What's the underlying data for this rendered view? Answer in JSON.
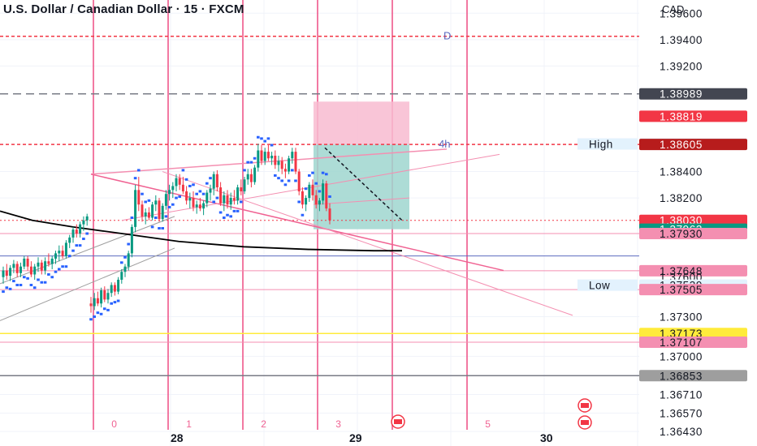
{
  "header": {
    "title": "U.S. Dollar / Canadian Dollar · 15 · FXCM",
    "currency": "CAD"
  },
  "chart_data": {
    "type": "candlestick",
    "symbol": "USDCAD",
    "timeframe": "15",
    "ylim": [
      1.3632,
      1.397
    ],
    "price_ticks": [
      "1.39600",
      "1.39400",
      "1.39200",
      "1.38400",
      "1.38200",
      "1.37300",
      "1.37000",
      "1.36710",
      "1.36570",
      "1.36430"
    ],
    "tags": [
      {
        "text": "1.38989",
        "value": 1.38989,
        "bg": "#434651",
        "fg": "#ffffff"
      },
      {
        "text": "1.38819",
        "value": 1.38819,
        "bg": "#f23645",
        "fg": "#ffffff"
      },
      {
        "text": "1.38609",
        "value": 1.38609,
        "bg": "#e3f2fd",
        "fg": "#131722",
        "label": "High"
      },
      {
        "text": "1.38605",
        "value": 1.38605,
        "bg": "#b71c1c",
        "fg": "#ffffff"
      },
      {
        "text": "1.38030",
        "value": 1.3803,
        "bg": "#f23645",
        "fg": "#ffffff",
        "sub": "02:02"
      },
      {
        "text": "1.37963",
        "value": 1.37963,
        "bg": "#089981",
        "fg": "#ffffff"
      },
      {
        "text": "1.37930",
        "value": 1.3793,
        "bg": "#f48fb1",
        "fg": "#131722"
      },
      {
        "text": "1.37648",
        "value": 1.37648,
        "bg": "#f48fb1",
        "fg": "#131722"
      },
      {
        "text": "1.37600",
        "value": 1.376,
        "bg": "none",
        "fg": "#131722"
      },
      {
        "text": "1.37539",
        "value": 1.37539,
        "bg": "#e3f2fd",
        "fg": "#131722",
        "label": "Low"
      },
      {
        "text": "1.37505",
        "value": 1.37505,
        "bg": "#f48fb1",
        "fg": "#131722"
      },
      {
        "text": "1.37173",
        "value": 1.37173,
        "bg": "#ffeb3b",
        "fg": "#131722"
      },
      {
        "text": "1.37107",
        "value": 1.37107,
        "bg": "#f48fb1",
        "fg": "#131722"
      },
      {
        "text": "1.36853",
        "value": 1.36853,
        "bg": "#9e9e9e",
        "fg": "#131722"
      }
    ],
    "dates": [
      {
        "label": "28",
        "session": 1.0
      },
      {
        "label": "29",
        "session": 3.5
      },
      {
        "label": "30",
        "session": 5.5
      }
    ],
    "session_numbers": [
      {
        "label": "0",
        "session": 0.1
      },
      {
        "label": "1",
        "session": 1.1
      },
      {
        "label": "2",
        "session": 2.1
      },
      {
        "label": "3",
        "session": 3.1
      },
      {
        "label": "5",
        "session": 5.1
      }
    ],
    "level_labels": [
      {
        "label": "D",
        "value": 1.39425
      },
      {
        "label": "4h",
        "value": 1.38605
      }
    ],
    "reference_levels": [
      1.38989,
      1.38605,
      1.3803,
      1.37963,
      1.3793,
      1.37648,
      1.37539,
      1.37505,
      1.37173,
      1.37107,
      1.36853,
      1.39425
    ],
    "candles": [
      [
        1.374,
        1.3745,
        1.3733,
        1.3738
      ],
      [
        1.3738,
        1.3748,
        1.3735,
        1.3744
      ],
      [
        1.3744,
        1.3749,
        1.3738,
        1.374
      ],
      [
        1.374,
        1.3752,
        1.3737,
        1.375
      ],
      [
        1.375,
        1.3753,
        1.3741,
        1.3743
      ],
      [
        1.3743,
        1.3751,
        1.374,
        1.3748
      ],
      [
        1.3748,
        1.3756,
        1.3745,
        1.3754
      ],
      [
        1.3754,
        1.3756,
        1.3746,
        1.3749
      ],
      [
        1.3749,
        1.376,
        1.3747,
        1.3758
      ],
      [
        1.3758,
        1.3766,
        1.3755,
        1.3764
      ],
      [
        1.3764,
        1.377,
        1.376,
        1.3768
      ],
      [
        1.3768,
        1.378,
        1.3765,
        1.3778
      ],
      [
        1.3778,
        1.38,
        1.3775,
        1.3798
      ],
      [
        1.3798,
        1.383,
        1.3794,
        1.3826
      ],
      [
        1.3826,
        1.3836,
        1.381,
        1.3815
      ],
      [
        1.3815,
        1.3818,
        1.3802,
        1.3806
      ],
      [
        1.3806,
        1.3812,
        1.38,
        1.3809
      ],
      [
        1.3809,
        1.3813,
        1.3803,
        1.3805
      ],
      [
        1.3805,
        1.3817,
        1.3803,
        1.3815
      ],
      [
        1.3815,
        1.3822,
        1.381,
        1.3818
      ],
      [
        1.3818,
        1.382,
        1.3802,
        1.3804
      ],
      [
        1.3804,
        1.3816,
        1.3802,
        1.3814
      ],
      [
        1.3814,
        1.3826,
        1.3811,
        1.3823
      ],
      [
        1.3823,
        1.383,
        1.3818,
        1.3826
      ],
      [
        1.3826,
        1.3832,
        1.382,
        1.3829
      ],
      [
        1.3829,
        1.3838,
        1.3825,
        1.3835
      ],
      [
        1.3835,
        1.3838,
        1.3826,
        1.383
      ],
      [
        1.383,
        1.3836,
        1.3823,
        1.3825
      ],
      [
        1.3825,
        1.3829,
        1.3815,
        1.3818
      ],
      [
        1.3818,
        1.3824,
        1.3812,
        1.382
      ],
      [
        1.382,
        1.3825,
        1.381,
        1.3813
      ],
      [
        1.3813,
        1.3818,
        1.3808,
        1.3815
      ],
      [
        1.3815,
        1.382,
        1.381,
        1.3812
      ],
      [
        1.3812,
        1.3818,
        1.3807,
        1.3816
      ],
      [
        1.3816,
        1.3826,
        1.3813,
        1.3824
      ],
      [
        1.3824,
        1.383,
        1.3818,
        1.3827
      ],
      [
        1.3827,
        1.384,
        1.3822,
        1.3838
      ],
      [
        1.3838,
        1.3841,
        1.3825,
        1.3828
      ],
      [
        1.3828,
        1.3832,
        1.3814,
        1.3816
      ],
      [
        1.3816,
        1.3825,
        1.381,
        1.3822
      ],
      [
        1.3822,
        1.3826,
        1.3812,
        1.3815
      ],
      [
        1.3815,
        1.3824,
        1.3811,
        1.382
      ],
      [
        1.382,
        1.3826,
        1.3815,
        1.3818
      ],
      [
        1.3818,
        1.383,
        1.3815,
        1.3828
      ],
      [
        1.3828,
        1.3834,
        1.3822,
        1.3825
      ],
      [
        1.3825,
        1.3836,
        1.3823,
        1.3834
      ],
      [
        1.3834,
        1.3842,
        1.383,
        1.3838
      ],
      [
        1.3838,
        1.3842,
        1.3828,
        1.3832
      ],
      [
        1.3832,
        1.3845,
        1.383,
        1.3843
      ],
      [
        1.3843,
        1.3861,
        1.384,
        1.3856
      ],
      [
        1.3856,
        1.386,
        1.3845,
        1.3848
      ],
      [
        1.3848,
        1.3858,
        1.3845,
        1.3855
      ],
      [
        1.3855,
        1.386,
        1.3848,
        1.385
      ],
      [
        1.385,
        1.3855,
        1.3845,
        1.3852
      ],
      [
        1.3852,
        1.3856,
        1.3842,
        1.3845
      ],
      [
        1.3845,
        1.3852,
        1.384,
        1.3848
      ],
      [
        1.3848,
        1.3851,
        1.3838,
        1.3842
      ],
      [
        1.3842,
        1.3846,
        1.3835,
        1.384
      ],
      [
        1.384,
        1.3852,
        1.3838,
        1.385
      ],
      [
        1.385,
        1.3858,
        1.3846,
        1.3855
      ],
      [
        1.3855,
        1.3858,
        1.3838,
        1.384
      ],
      [
        1.384,
        1.3842,
        1.3822,
        1.3825
      ],
      [
        1.3825,
        1.3828,
        1.3812,
        1.3815
      ],
      [
        1.3815,
        1.3822,
        1.381,
        1.382
      ],
      [
        1.382,
        1.3832,
        1.3817,
        1.383
      ],
      [
        1.383,
        1.3834,
        1.3818,
        1.3822
      ],
      [
        1.3822,
        1.3826,
        1.3812,
        1.3815
      ],
      [
        1.3815,
        1.382,
        1.381,
        1.3818
      ],
      [
        1.3818,
        1.3834,
        1.3815,
        1.3831
      ],
      [
        1.3831,
        1.3833,
        1.381,
        1.3812
      ],
      [
        1.3812,
        1.3816,
        1.38,
        1.3803
      ]
    ],
    "parabolic_sar": {
      "color": "#2962ff"
    },
    "moving_average": {
      "color": "#000000"
    }
  }
}
